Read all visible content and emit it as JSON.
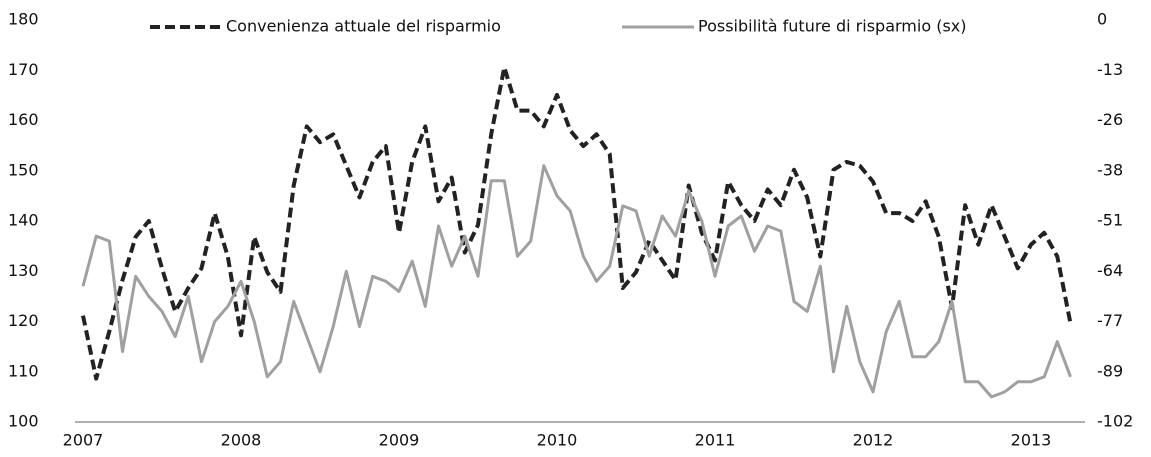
{
  "chart_data": {
    "type": "line",
    "categories": [
      "2007",
      null,
      null,
      null,
      null,
      null,
      null,
      null,
      null,
      null,
      null,
      null,
      "2008",
      null,
      null,
      null,
      null,
      null,
      null,
      null,
      null,
      null,
      null,
      null,
      "2009",
      null,
      null,
      null,
      null,
      null,
      null,
      null,
      null,
      null,
      null,
      null,
      "2010",
      null,
      null,
      null,
      null,
      null,
      null,
      null,
      null,
      null,
      null,
      null,
      "2011",
      null,
      null,
      null,
      null,
      null,
      null,
      null,
      null,
      null,
      null,
      null,
      "2012",
      null,
      null,
      null,
      null,
      null,
      null,
      null,
      null,
      null,
      null,
      null,
      "2013",
      null,
      null,
      null
    ],
    "series": [
      {
        "name": "Convenienza attuale del risparmio",
        "color": "#222222",
        "axis": "y2",
        "dash": true,
        "values": [
          -75,
          -91,
          -79,
          -66,
          -55,
          -51,
          -63,
          -74,
          -68,
          -63,
          -49,
          -60,
          -80,
          -55,
          -64,
          -69,
          -42,
          -27,
          -31,
          -29,
          -37,
          -45,
          -36,
          -32,
          -54,
          -36,
          -27,
          -46,
          -40,
          -59,
          -52,
          -29,
          -12,
          -23,
          -23,
          -27,
          -19,
          -28,
          -32,
          -29,
          -34,
          -68,
          -64,
          -56,
          -61,
          -66,
          -42,
          -54,
          -61,
          -41,
          -47,
          -51,
          -43,
          -47,
          -38,
          -45,
          -60,
          -38,
          -36,
          -37,
          -41,
          -49,
          -49,
          -51,
          -46,
          -55,
          -73,
          -47,
          -57,
          -47,
          -55,
          -63,
          -57,
          -54,
          -60,
          -77
        ]
      },
      {
        "name": "Possibilità future di risparmio (sx)",
        "color": "#a0a0a0",
        "dash": false,
        "values": [
          127,
          137,
          136,
          114,
          129,
          125,
          122,
          117,
          125,
          112,
          120,
          123,
          128,
          120,
          109,
          112,
          124,
          117,
          110,
          119,
          130,
          119,
          129,
          128,
          126,
          132,
          123,
          139,
          131,
          137,
          129,
          148,
          148,
          133,
          136,
          151,
          145,
          142,
          133,
          128,
          131,
          143,
          142,
          133,
          141,
          137,
          146,
          140,
          129,
          139,
          141,
          134,
          139,
          138,
          124,
          122,
          131,
          110,
          123,
          112,
          106,
          118,
          124,
          113,
          113,
          116,
          124,
          108,
          108,
          105,
          106,
          108,
          108,
          109,
          116,
          109
        ]
      }
    ],
    "ylim": [
      100,
      180
    ],
    "yticks": [
      100,
      110,
      120,
      130,
      140,
      150,
      160,
      170,
      180
    ],
    "y2lim": [
      -102,
      0
    ],
    "y2ticks": [
      {
        "value": -102,
        "label": "-102"
      },
      {
        "value": -89.25,
        "label": "-89"
      },
      {
        "value": -76.5,
        "label": "-77"
      },
      {
        "value": -63.75,
        "label": "-64"
      },
      {
        "value": -51,
        "label": "-51"
      },
      {
        "value": -38.25,
        "label": "-38"
      },
      {
        "value": -25.5,
        "label": "-26"
      },
      {
        "value": -12.75,
        "label": "-13"
      },
      0
    ],
    "grid": false
  }
}
